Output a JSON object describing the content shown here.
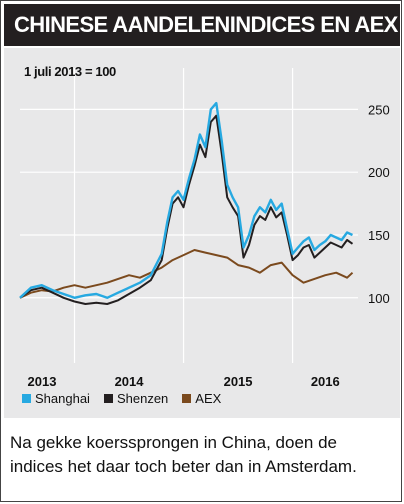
{
  "header": {
    "title": "CHINESE AANDELENINDICES EN AEX"
  },
  "caption": {
    "text": "Na gekke koerssprongen in China, doen de indices het daar toch beter dan in Amsterdam."
  },
  "chart_data": {
    "type": "line",
    "title": "CHINESE AANDELENINDICES EN AEX",
    "subtitle": "1 juli 2013 = 100",
    "xlabel": "",
    "ylabel": "",
    "x_ticks": [
      "2013",
      "2014",
      "2015",
      "2016"
    ],
    "y_ticks": [
      100,
      150,
      200,
      250
    ],
    "xlim": [
      2013.5,
      2016.6
    ],
    "ylim": [
      60,
      275
    ],
    "grid": true,
    "legend_position": "bottom-left",
    "series": [
      {
        "name": "Shanghai",
        "color": "#27a9e1",
        "x": [
          2013.5,
          2013.6,
          2013.7,
          2013.8,
          2013.9,
          2014.0,
          2014.1,
          2014.2,
          2014.3,
          2014.4,
          2014.5,
          2014.6,
          2014.7,
          2014.8,
          2014.85,
          2014.9,
          2014.95,
          2015.0,
          2015.05,
          2015.1,
          2015.15,
          2015.2,
          2015.25,
          2015.3,
          2015.35,
          2015.4,
          2015.45,
          2015.5,
          2015.55,
          2015.6,
          2015.65,
          2015.7,
          2015.75,
          2015.8,
          2015.85,
          2015.9,
          2015.95,
          2016.0,
          2016.05,
          2016.1,
          2016.15,
          2016.2,
          2016.25,
          2016.3,
          2016.35,
          2016.4,
          2016.45,
          2016.5,
          2016.55
        ],
        "values": [
          100,
          108,
          110,
          106,
          103,
          100,
          102,
          103,
          100,
          104,
          108,
          112,
          118,
          135,
          160,
          180,
          185,
          178,
          195,
          210,
          230,
          220,
          250,
          255,
          225,
          190,
          180,
          172,
          140,
          150,
          165,
          172,
          168,
          178,
          170,
          175,
          155,
          135,
          140,
          145,
          148,
          138,
          142,
          145,
          150,
          148,
          146,
          152,
          150
        ]
      },
      {
        "name": "Shenzen",
        "color": "#231f20",
        "x": [
          2013.5,
          2013.6,
          2013.7,
          2013.8,
          2013.9,
          2014.0,
          2014.1,
          2014.2,
          2014.3,
          2014.4,
          2014.5,
          2014.6,
          2014.7,
          2014.8,
          2014.85,
          2014.9,
          2014.95,
          2015.0,
          2015.05,
          2015.1,
          2015.15,
          2015.2,
          2015.25,
          2015.3,
          2015.35,
          2015.4,
          2015.45,
          2015.5,
          2015.55,
          2015.6,
          2015.65,
          2015.7,
          2015.75,
          2015.8,
          2015.85,
          2015.9,
          2015.95,
          2016.0,
          2016.05,
          2016.1,
          2016.15,
          2016.2,
          2016.25,
          2016.3,
          2016.35,
          2016.4,
          2016.45,
          2016.5,
          2016.55
        ],
        "values": [
          100,
          106,
          108,
          104,
          100,
          97,
          95,
          96,
          95,
          98,
          103,
          108,
          114,
          130,
          155,
          175,
          180,
          172,
          190,
          205,
          222,
          212,
          240,
          245,
          215,
          180,
          172,
          165,
          132,
          142,
          158,
          165,
          162,
          172,
          164,
          168,
          150,
          130,
          134,
          140,
          142,
          132,
          136,
          140,
          144,
          142,
          140,
          146,
          143
        ]
      },
      {
        "name": "AEX",
        "color": "#7b4a1e",
        "x": [
          2013.5,
          2013.6,
          2013.7,
          2013.8,
          2013.9,
          2014.0,
          2014.1,
          2014.2,
          2014.3,
          2014.4,
          2014.5,
          2014.6,
          2014.7,
          2014.8,
          2014.9,
          2015.0,
          2015.1,
          2015.2,
          2015.3,
          2015.4,
          2015.5,
          2015.6,
          2015.7,
          2015.8,
          2015.9,
          2016.0,
          2016.1,
          2016.2,
          2016.3,
          2016.4,
          2016.5,
          2016.55
        ],
        "values": [
          100,
          104,
          106,
          105,
          108,
          110,
          108,
          110,
          112,
          115,
          118,
          116,
          120,
          124,
          130,
          134,
          138,
          136,
          134,
          132,
          126,
          124,
          120,
          126,
          128,
          118,
          112,
          115,
          118,
          120,
          116,
          120
        ]
      }
    ]
  }
}
